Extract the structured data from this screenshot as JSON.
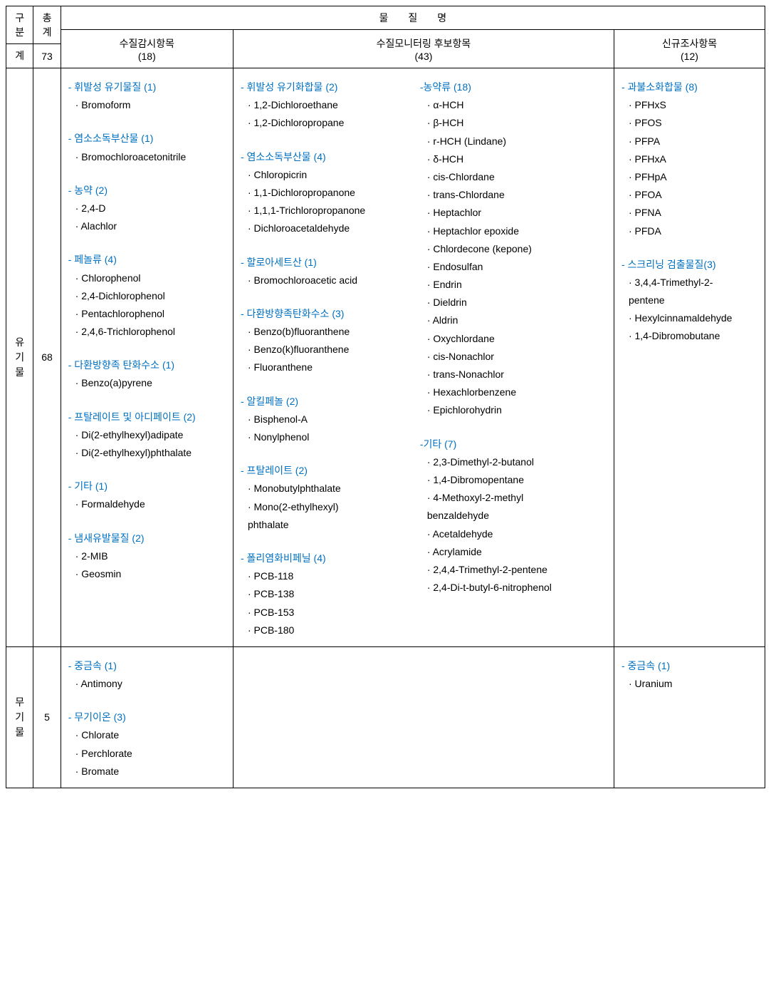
{
  "colors": {
    "border": "#000000",
    "text": "#000000",
    "group_header": "#0070c0",
    "background": "#ffffff"
  },
  "fonts": {
    "body_size_pt": 11,
    "line_height": 1.8
  },
  "header": {
    "gubun": "구분",
    "total": "총계",
    "mulmyeong": "물질명",
    "gye": "계",
    "gye_total": "73",
    "col1_title": "수질감시항목",
    "col1_count": "(18)",
    "col2_title": "수질모니터링 후보항목",
    "col2_count": "(43)",
    "col3_title": "신규조사항목",
    "col3_count": "(12)"
  },
  "rows": {
    "organic": {
      "label_lines": [
        "유",
        "기",
        "물"
      ],
      "count": "68",
      "col1": [
        {
          "type": "grp",
          "text": "- 휘발성 유기물질 (1)"
        },
        {
          "type": "item",
          "text": "· Bromoform"
        },
        {
          "type": "spacer"
        },
        {
          "type": "grp",
          "text": "- 염소소독부산물 (1)"
        },
        {
          "type": "item",
          "text": "· Bromochloroacetonitrile"
        },
        {
          "type": "spacer"
        },
        {
          "type": "grp",
          "text": "- 농약 (2)"
        },
        {
          "type": "item",
          "text": "· 2,4-D"
        },
        {
          "type": "item",
          "text": "· Alachlor"
        },
        {
          "type": "spacer"
        },
        {
          "type": "grp",
          "text": "- 페놀류 (4)"
        },
        {
          "type": "item",
          "text": "· Chlorophenol"
        },
        {
          "type": "item",
          "text": "· 2,4-Dichlorophenol"
        },
        {
          "type": "item",
          "text": "· Pentachlorophenol"
        },
        {
          "type": "item",
          "text": "· 2,4,6-Trichlorophenol"
        },
        {
          "type": "spacer"
        },
        {
          "type": "grp",
          "text": "- 다환방향족 탄화수소 (1)"
        },
        {
          "type": "item",
          "text": "· Benzo(a)pyrene"
        },
        {
          "type": "spacer"
        },
        {
          "type": "grp",
          "text": "- 프탈레이트 및 아디페이트 (2)"
        },
        {
          "type": "item",
          "text": "· Di(2-ethylhexyl)adipate"
        },
        {
          "type": "item",
          "text": "· Di(2-ethylhexyl)phthalate"
        },
        {
          "type": "spacer"
        },
        {
          "type": "grp",
          "text": "- 기타 (1)"
        },
        {
          "type": "item",
          "text": "· Formaldehyde"
        },
        {
          "type": "spacer"
        },
        {
          "type": "grp",
          "text": "- 냄새유발물질 (2)"
        },
        {
          "type": "item",
          "text": "· 2-MIB"
        },
        {
          "type": "item",
          "text": "· Geosmin"
        }
      ],
      "col2a": [
        {
          "type": "grp",
          "text": "- 휘발성 유기화합물 (2)"
        },
        {
          "type": "item",
          "text": "· 1,2-Dichloroethane"
        },
        {
          "type": "item",
          "text": "· 1,2-Dichloropropane"
        },
        {
          "type": "spacer"
        },
        {
          "type": "grp",
          "text": "- 염소소독부산물 (4)"
        },
        {
          "type": "item",
          "text": "· Chloropicrin"
        },
        {
          "type": "item",
          "text": "· 1,1-Dichloropropanone"
        },
        {
          "type": "item",
          "text": "· 1,1,1-Trichloropropanone"
        },
        {
          "type": "item",
          "text": "· Dichloroacetaldehyde"
        },
        {
          "type": "spacer"
        },
        {
          "type": "grp",
          "text": "- 할로아세트산 (1)"
        },
        {
          "type": "item",
          "text": "· Bromochloroacetic acid"
        },
        {
          "type": "spacer"
        },
        {
          "type": "grp",
          "text": "- 다환방향족탄화수소 (3)"
        },
        {
          "type": "item",
          "text": "· Benzo(b)fluoranthene"
        },
        {
          "type": "item",
          "text": "· Benzo(k)fluoranthene"
        },
        {
          "type": "item",
          "text": "· Fluoranthene"
        },
        {
          "type": "spacer"
        },
        {
          "type": "grp",
          "text": "- 알킬페놀 (2)"
        },
        {
          "type": "item",
          "text": "· Bisphenol-A"
        },
        {
          "type": "item",
          "text": "· Nonylphenol"
        },
        {
          "type": "spacer"
        },
        {
          "type": "grp",
          "text": "- 프탈레이트 (2)"
        },
        {
          "type": "item",
          "text": "· Monobutylphthalate"
        },
        {
          "type": "item",
          "text": "· Mono(2-ethylhexyl)"
        },
        {
          "type": "item",
          "text": "  phthalate"
        },
        {
          "type": "spacer"
        },
        {
          "type": "grp",
          "text": "- 폴리염화비페닐 (4)"
        },
        {
          "type": "item",
          "text": "· PCB-118"
        },
        {
          "type": "item",
          "text": "· PCB-138"
        },
        {
          "type": "item",
          "text": "· PCB-153"
        },
        {
          "type": "item",
          "text": "· PCB-180"
        }
      ],
      "col2b": [
        {
          "type": "grp",
          "text": "-농약류 (18)"
        },
        {
          "type": "item",
          "text": "· α-HCH"
        },
        {
          "type": "item",
          "text": "· β-HCH"
        },
        {
          "type": "item",
          "text": "· r-HCH (Lindane)"
        },
        {
          "type": "item",
          "text": "· δ-HCH"
        },
        {
          "type": "item",
          "text": "· cis-Chlordane"
        },
        {
          "type": "item",
          "text": "· trans-Chlordane"
        },
        {
          "type": "item",
          "text": "· Heptachlor"
        },
        {
          "type": "item",
          "text": "· Heptachlor epoxide"
        },
        {
          "type": "item",
          "text": "· Chlordecone (kepone)"
        },
        {
          "type": "item",
          "text": "· Endosulfan"
        },
        {
          "type": "item",
          "text": "· Endrin"
        },
        {
          "type": "item",
          "text": "· Dieldrin"
        },
        {
          "type": "item",
          "text": "· Aldrin"
        },
        {
          "type": "item",
          "text": "· Oxychlordane"
        },
        {
          "type": "item",
          "text": "· cis-Nonachlor"
        },
        {
          "type": "item",
          "text": "· trans-Nonachlor"
        },
        {
          "type": "item",
          "text": "· Hexachlorbenzene"
        },
        {
          "type": "item",
          "text": "· Epichlorohydrin"
        },
        {
          "type": "spacer"
        },
        {
          "type": "grp",
          "text": "-기타 (7)"
        },
        {
          "type": "item",
          "text": "· 2,3-Dimethyl-2-butanol"
        },
        {
          "type": "item",
          "text": "· 1,4-Dibromopentane"
        },
        {
          "type": "item",
          "text": "· 4-Methoxyl-2-methyl"
        },
        {
          "type": "item",
          "text": "  benzaldehyde"
        },
        {
          "type": "item",
          "text": "· Acetaldehyde"
        },
        {
          "type": "item",
          "text": "· Acrylamide"
        },
        {
          "type": "item",
          "text": "· 2,4,4-Trimethyl-2-pentene"
        },
        {
          "type": "item",
          "text": "· 2,4-Di-t-butyl-6-nitrophenol"
        }
      ],
      "col3": [
        {
          "type": "grp",
          "text": "- 과불소화합물 (8)"
        },
        {
          "type": "item",
          "text": "· PFHxS"
        },
        {
          "type": "item",
          "text": "· PFOS"
        },
        {
          "type": "item",
          "text": "· PFPA"
        },
        {
          "type": "item",
          "text": "· PFHxA"
        },
        {
          "type": "item",
          "text": "· PFHpA"
        },
        {
          "type": "item",
          "text": "· PFOA"
        },
        {
          "type": "item",
          "text": "· PFNA"
        },
        {
          "type": "item",
          "text": "· PFDA"
        },
        {
          "type": "spacer"
        },
        {
          "type": "grp",
          "text": "- 스크리닝 검출물질(3)"
        },
        {
          "type": "item",
          "text": "· 3,4,4-Trimethyl-2-"
        },
        {
          "type": "item",
          "text": "  pentene"
        },
        {
          "type": "item",
          "text": "· Hexylcinnamaldehyde"
        },
        {
          "type": "item",
          "text": "· 1,4-Dibromobutane"
        }
      ]
    },
    "inorganic": {
      "label_lines": [
        "무",
        "기",
        "물"
      ],
      "count": "5",
      "col1": [
        {
          "type": "grp",
          "text": "- 중금속 (1)"
        },
        {
          "type": "item",
          "text": "· Antimony"
        },
        {
          "type": "spacer"
        },
        {
          "type": "grp",
          "text": "- 무기이온 (3)"
        },
        {
          "type": "item",
          "text": "· Chlorate"
        },
        {
          "type": "item",
          "text": "· Perchlorate"
        },
        {
          "type": "item",
          "text": "· Bromate"
        }
      ],
      "col2a": [],
      "col2b": [],
      "col3": [
        {
          "type": "grp",
          "text": "- 중금속 (1)"
        },
        {
          "type": "item",
          "text": "· Uranium"
        }
      ]
    }
  }
}
